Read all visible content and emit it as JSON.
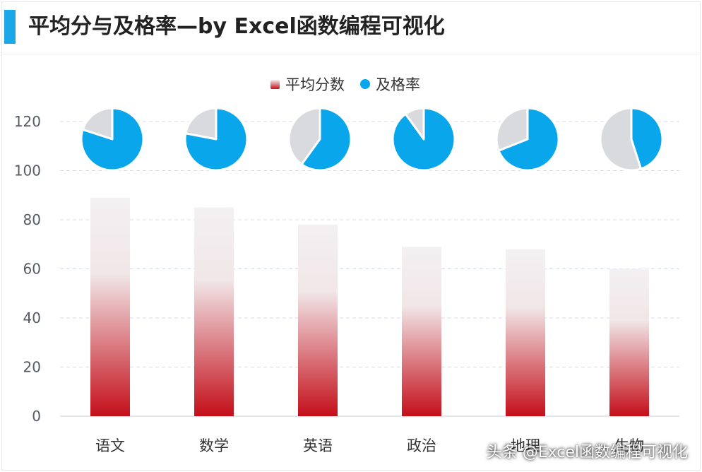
{
  "header": {
    "title": "平均分与及格率—by Excel函数编程可视化"
  },
  "watermark": "头条 @Excel函数编程可视化",
  "colors": {
    "accent": "#1ba7e8",
    "pass": "#0aa6ec",
    "fail": "#d9dadd",
    "bar_top": "#f3f1f3",
    "bar_bottom": "#c40f1a",
    "grid": "#d5dde8"
  },
  "chart_data": {
    "type": "bar",
    "legend": {
      "placement": "top-center",
      "entries": [
        "平均分数",
        "及格率"
      ]
    },
    "categories": [
      "语文",
      "数学",
      "英语",
      "政治",
      "地理",
      "生物"
    ],
    "series": [
      {
        "name": "平均分数",
        "values": [
          89,
          85,
          78,
          69,
          68,
          60
        ]
      },
      {
        "name": "及格率",
        "type": "pie",
        "values": [
          0.8,
          0.78,
          0.6,
          0.9,
          0.69,
          0.45
        ]
      }
    ],
    "yticks": [
      "0",
      "20",
      "40",
      "60",
      "80",
      "100",
      "120"
    ],
    "ylim": [
      0,
      120
    ],
    "grid": true
  }
}
